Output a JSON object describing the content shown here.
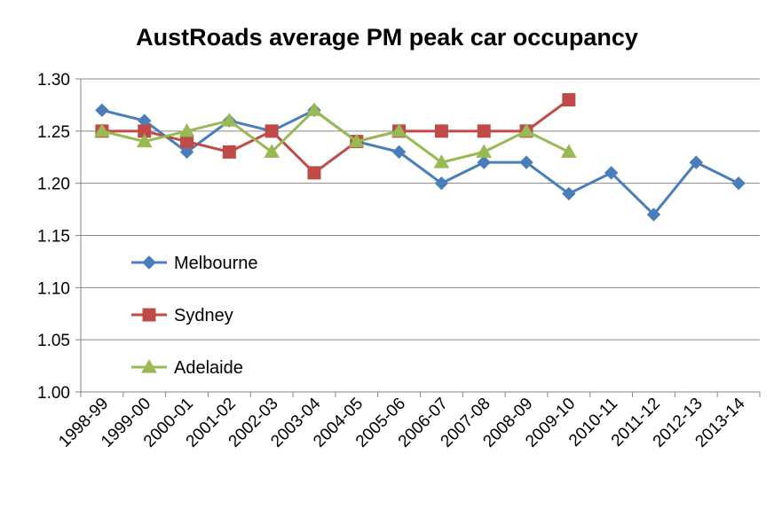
{
  "chart_data": {
    "type": "line",
    "title": "AustRoads average PM peak car occupancy",
    "xlabel": "",
    "ylabel": "",
    "ylim": [
      1.0,
      1.3
    ],
    "yticks": [
      "1.00",
      "1.05",
      "1.10",
      "1.15",
      "1.20",
      "1.25",
      "1.30"
    ],
    "grid": true,
    "legend_position": "center-left inside plot",
    "categories": [
      "1998-99",
      "1999-00",
      "2000-01",
      "2001-02",
      "2002-03",
      "2003-04",
      "2004-05",
      "2005-06",
      "2006-07",
      "2007-08",
      "2008-09",
      "2009-10",
      "2010-11",
      "2011-12",
      "2012-13",
      "2013-14"
    ],
    "series": [
      {
        "name": "Melbourne",
        "color": "#4a7ebb",
        "marker": "diamond",
        "values": [
          1.27,
          1.26,
          1.23,
          1.26,
          1.25,
          1.27,
          1.24,
          1.23,
          1.2,
          1.22,
          1.22,
          1.19,
          1.21,
          1.17,
          1.22,
          1.2
        ]
      },
      {
        "name": "Sydney",
        "color": "#be4b48",
        "marker": "square",
        "values": [
          1.25,
          1.25,
          1.24,
          1.23,
          1.25,
          1.21,
          1.24,
          1.25,
          1.25,
          1.25,
          1.25,
          1.28,
          null,
          null,
          null,
          null
        ]
      },
      {
        "name": "Adelaide",
        "color": "#98b954",
        "marker": "triangle",
        "values": [
          1.25,
          1.24,
          1.25,
          1.26,
          1.23,
          1.27,
          1.24,
          1.25,
          1.22,
          1.23,
          1.25,
          1.23,
          null,
          null,
          null,
          null
        ]
      }
    ]
  }
}
